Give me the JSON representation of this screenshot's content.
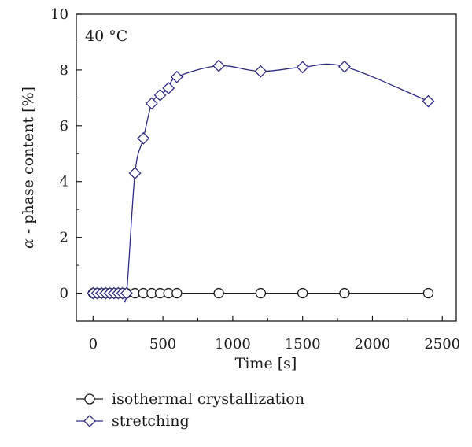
{
  "chart_data": {
    "type": "line",
    "title": "",
    "annotation": "40 °C",
    "xlabel": "Time [s]",
    "ylabel_symbol": "α",
    "ylabel_rest": " - phase content [%]",
    "xlim": [
      -120,
      2600
    ],
    "ylim": [
      -1,
      10
    ],
    "xticks": [
      0,
      500,
      1000,
      1500,
      2000,
      2500
    ],
    "xticks_minor": [
      250,
      750,
      1250,
      1750,
      2250
    ],
    "yticks": [
      0,
      2,
      4,
      6,
      8,
      10
    ],
    "yticks_minor": [
      1,
      3,
      5,
      7,
      9
    ],
    "grid": false,
    "legend_position": "bottom-left, below plot",
    "series": [
      {
        "name": "isothermal crystallization",
        "marker": "circle",
        "color": "#1a1a1a",
        "x": [
          0,
          30,
          60,
          90,
          120,
          150,
          180,
          210,
          240,
          300,
          360,
          420,
          480,
          540,
          600,
          900,
          1200,
          1500,
          1800,
          2400
        ],
        "y": [
          0,
          0,
          0,
          0,
          0,
          0,
          0,
          0,
          0,
          0,
          0,
          0,
          0,
          0,
          0,
          0,
          0,
          0,
          0,
          0
        ]
      },
      {
        "name": "stretching",
        "marker": "diamond",
        "color": "#2e2a86",
        "x": [
          0,
          30,
          60,
          90,
          120,
          150,
          180,
          210,
          240,
          300,
          360,
          420,
          480,
          540,
          600,
          900,
          1200,
          1500,
          1800,
          2400
        ],
        "y": [
          0,
          0,
          0,
          0,
          0,
          0,
          0,
          0,
          0,
          4.3,
          5.55,
          6.8,
          7.1,
          7.35,
          7.75,
          8.15,
          7.95,
          8.1,
          8.12,
          6.88
        ]
      }
    ]
  }
}
